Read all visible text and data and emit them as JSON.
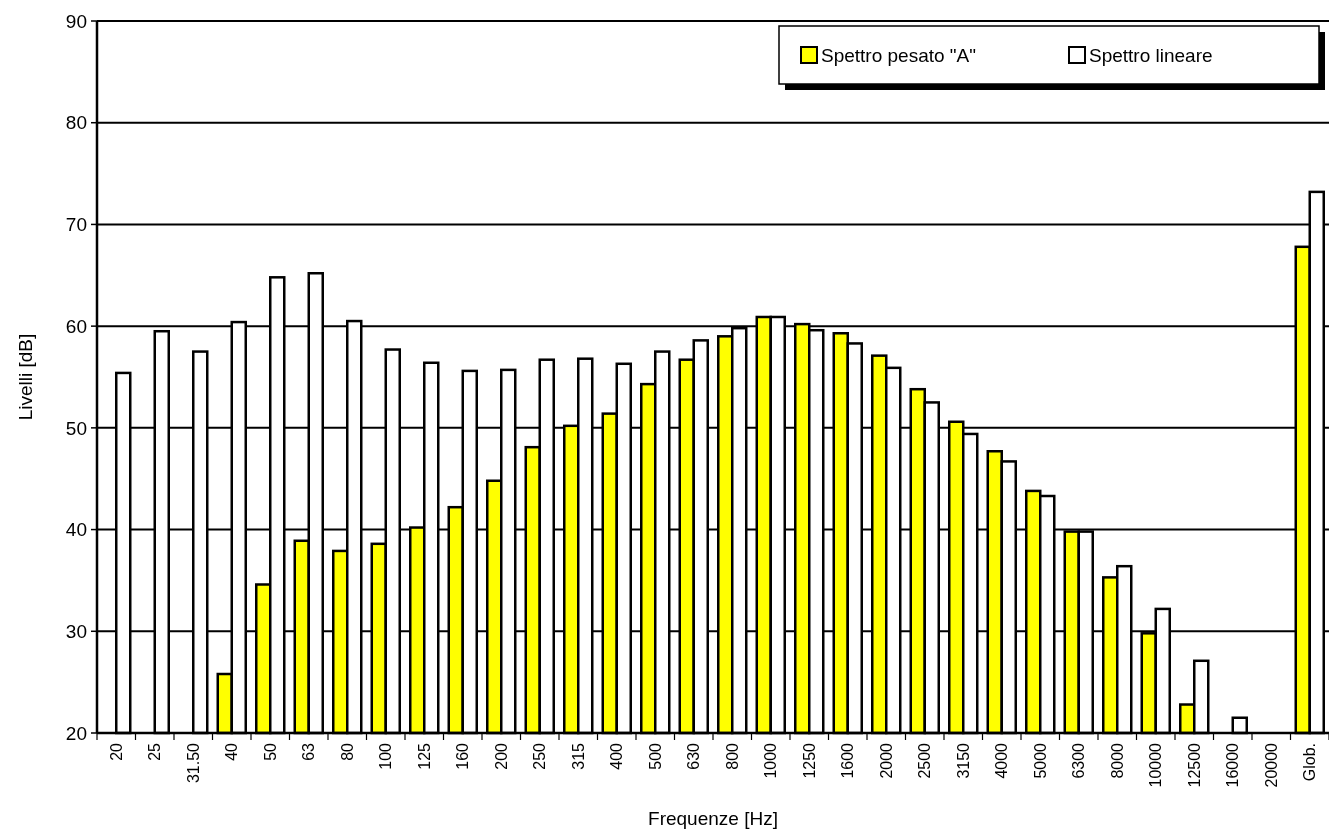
{
  "chart_data": {
    "type": "bar",
    "xlabel": "Frequenze [Hz]",
    "ylabel": "Livelli [dB]",
    "categories": [
      "20",
      "25",
      "31.50",
      "40",
      "50",
      "63",
      "80",
      "100",
      "125",
      "160",
      "200",
      "250",
      "315",
      "400",
      "500",
      "630",
      "800",
      "1000",
      "1250",
      "1600",
      "2000",
      "2500",
      "3150",
      "4000",
      "5000",
      "6300",
      "8000",
      "10000",
      "12500",
      "16000",
      "20000",
      "Glob."
    ],
    "series": [
      {
        "name": "Spettro pesato \"A\"",
        "color": "#ffff00",
        "values": [
          null,
          null,
          null,
          25.8,
          34.6,
          38.9,
          37.9,
          38.6,
          40.2,
          42.2,
          44.8,
          48.1,
          50.2,
          51.4,
          54.3,
          56.7,
          59.0,
          60.9,
          60.2,
          59.3,
          57.1,
          53.8,
          50.6,
          47.7,
          43.8,
          39.8,
          35.3,
          29.8,
          22.8,
          null,
          null,
          67.8
        ]
      },
      {
        "name": "Spettro lineare",
        "color": "#ffffff",
        "values": [
          55.4,
          59.5,
          57.5,
          60.4,
          64.8,
          65.2,
          60.5,
          57.7,
          56.4,
          55.6,
          55.7,
          56.7,
          56.8,
          56.3,
          57.5,
          58.6,
          59.8,
          60.9,
          59.6,
          58.3,
          55.9,
          52.5,
          49.4,
          46.7,
          43.3,
          39.8,
          36.4,
          32.2,
          27.1,
          21.5,
          null,
          73.2
        ]
      }
    ],
    "ylim": [
      20,
      90
    ],
    "yticks": [
      20,
      30,
      40,
      50,
      60,
      70,
      80,
      90
    ],
    "grid": "y",
    "legend": "top right"
  }
}
